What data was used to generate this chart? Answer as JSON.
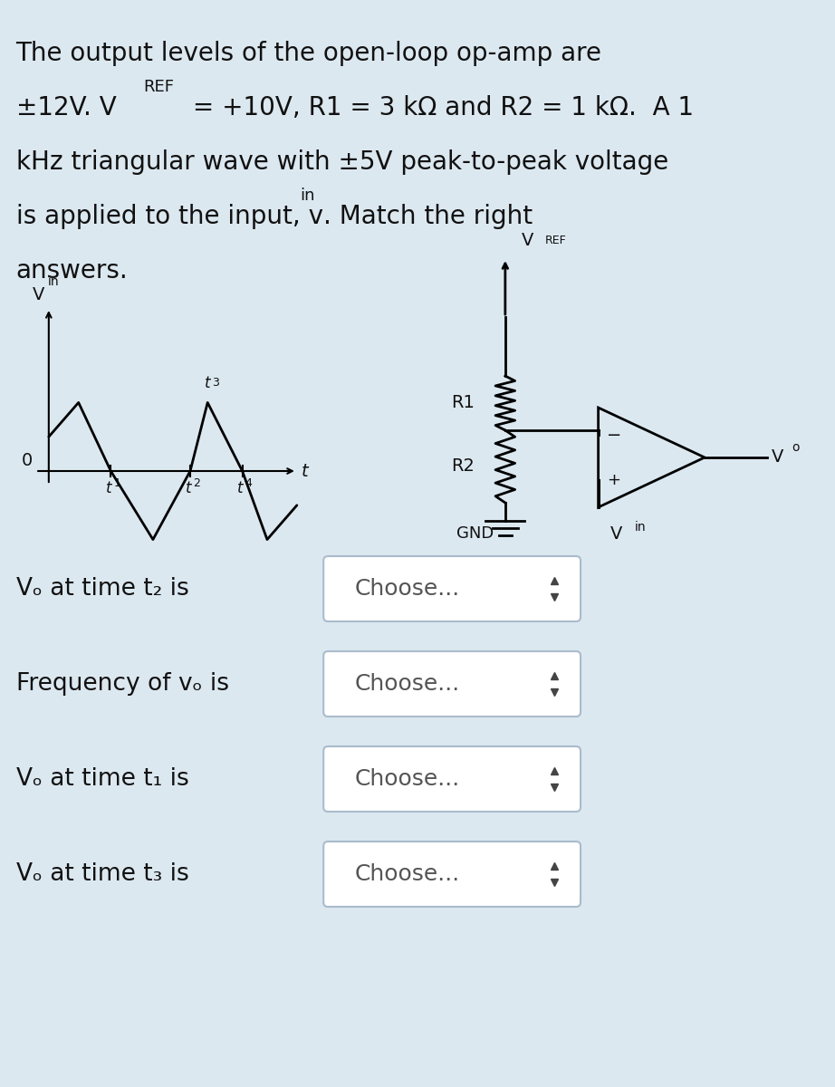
{
  "bg_color": "#dce8f0",
  "title_text_line1": "The output levels of the open-loop op-amp are",
  "title_text_line2": "±12V. VₛEF = +10V, R1 = 3 kΩ and R2 = 1 kΩ.  A 1",
  "title_text_line3": "kHz triangular wave with ±5V peak-to-peak voltage",
  "title_text_line4": "is applied to the input, vᴵₙ. Match the right",
  "title_text_line5": "answers.",
  "question_rows": [
    {
      "label": "Vₒ at time t₂ is",
      "dropdown": "Choose..."
    },
    {
      "label": "Frequency of vₒ is",
      "dropdown": "Choose..."
    },
    {
      "label": "Vₒ at time t₁ is",
      "dropdown": "Choose..."
    },
    {
      "label": "Vₒ at time t₃ is",
      "dropdown": "Choose..."
    }
  ],
  "font_size_main": 20,
  "font_size_questions": 19,
  "text_color": "#111111"
}
